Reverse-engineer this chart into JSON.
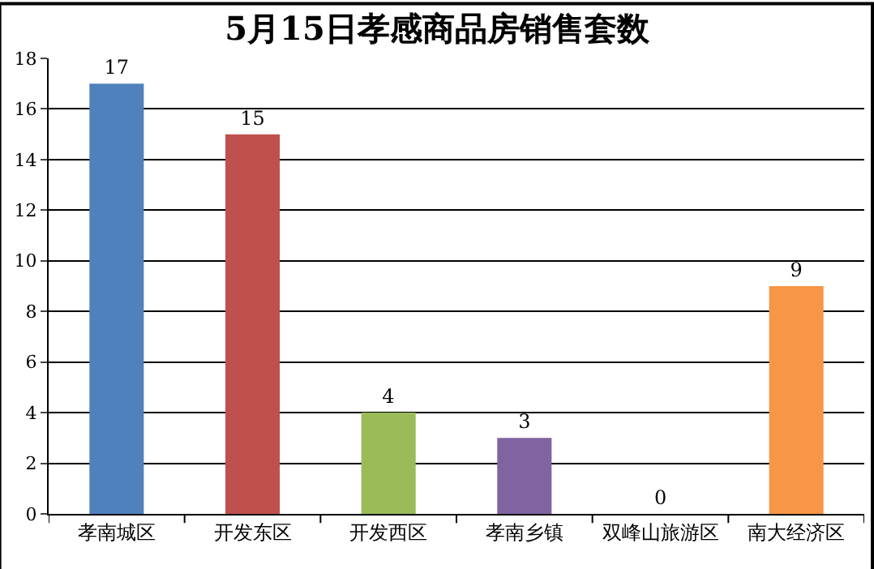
{
  "chart_data": {
    "type": "bar",
    "title": "5月15日孝感商品房销售套数",
    "categories": [
      "孝南城区",
      "开发东区",
      "开发西区",
      "孝南乡镇",
      "双峰山旅游区",
      "南大经济区"
    ],
    "values": [
      17,
      15,
      4,
      3,
      0,
      9
    ],
    "colors": [
      "#4f81bd",
      "#c0504d",
      "#9bbb59",
      "#8064a2",
      "#4bacc6",
      "#f79646"
    ],
    "ylim": [
      0,
      18
    ],
    "yticks": [
      0,
      2,
      4,
      6,
      8,
      10,
      12,
      14,
      16,
      18
    ],
    "grid": "y",
    "legend": false,
    "data_labels": true
  }
}
